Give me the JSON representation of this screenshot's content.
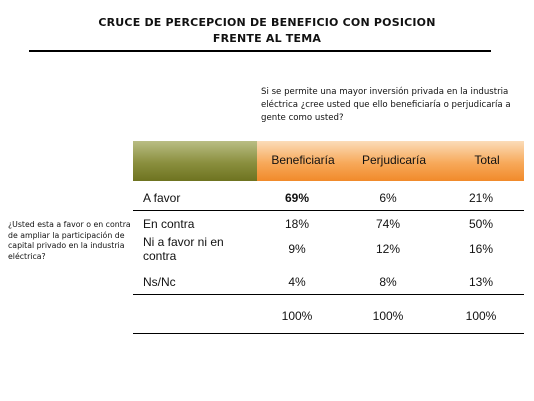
{
  "title": {
    "line1": "CRUCE DE PERCEPCION DE BENEFICIO CON POSICION",
    "line2": "FRENTE AL TEMA"
  },
  "question_top": "Si se permite una mayor inversión privada en la industria eléctrica ¿cree usted que ello beneficiaría o perjudicaría a gente como usted?",
  "question_left": "¿Usted esta a favor o en contra de ampliar la participación de capital privado en la industria eléctrica?",
  "columns": [
    "Beneficiaría",
    "Perjudicaría",
    "Total"
  ],
  "rows": [
    {
      "label": "A favor",
      "values": [
        "69%",
        "6%",
        "21%"
      ]
    },
    {
      "label": "En contra",
      "values": [
        "18%",
        "74%",
        "50%"
      ]
    },
    {
      "label": "Ni a favor ni en contra",
      "values": [
        "9%",
        "12%",
        "16%"
      ]
    },
    {
      "label": "Ns/Nc",
      "values": [
        "4%",
        "8%",
        "13%"
      ]
    }
  ],
  "totals": [
    "100%",
    "100%",
    "100%"
  ],
  "colors": {
    "olive": "#8a8f3e",
    "orange": "#f7a95a"
  }
}
